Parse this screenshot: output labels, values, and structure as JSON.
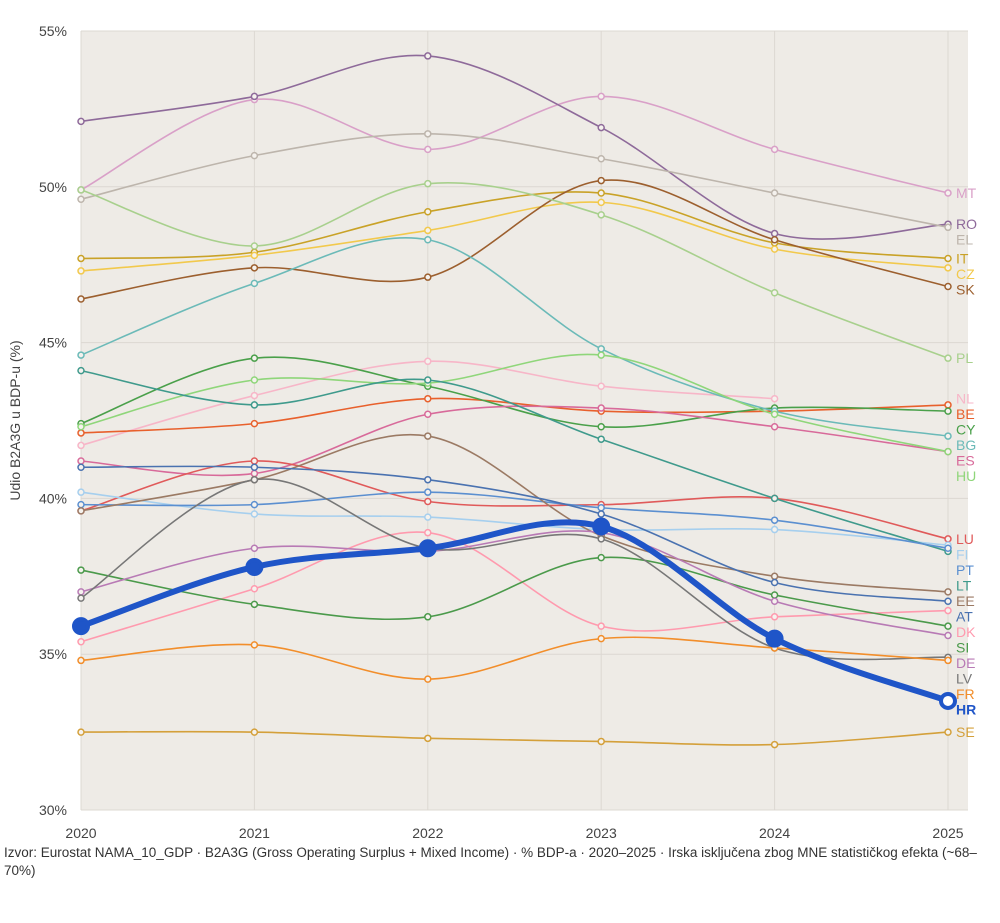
{
  "chart_data": {
    "type": "line",
    "title": "",
    "xlabel": "",
    "ylabel": "Udio B2A3G u BDP-u (%)",
    "x": [
      2020,
      2021,
      2022,
      2023,
      2024,
      2025
    ],
    "x_tick_labels": [
      "2020",
      "2021",
      "2022",
      "2023",
      "2024",
      "2025"
    ],
    "ylim": [
      30,
      55
    ],
    "y_ticks": [
      30,
      35,
      40,
      45,
      50,
      55
    ],
    "y_tick_labels": [
      "30%",
      "35%",
      "40%",
      "45%",
      "50%",
      "55%"
    ],
    "grid": true,
    "legend": "direct labels at right end of lines",
    "highlight": "HR",
    "series": [
      {
        "name": "MT",
        "color": "#d9a0c8",
        "values": [
          49.9,
          52.8,
          51.2,
          52.9,
          51.2,
          49.8
        ]
      },
      {
        "name": "RO",
        "color": "#8e6a9a",
        "values": [
          52.1,
          52.9,
          54.2,
          51.9,
          48.5,
          48.8
        ]
      },
      {
        "name": "EL",
        "color": "#bdb5ac",
        "values": [
          49.6,
          51.0,
          51.7,
          50.9,
          49.8,
          48.7
        ]
      },
      {
        "name": "IT",
        "color": "#c9a227",
        "values": [
          47.7,
          47.9,
          49.2,
          49.8,
          48.2,
          47.7
        ]
      },
      {
        "name": "CZ",
        "color": "#f2c94c",
        "values": [
          47.3,
          47.8,
          48.6,
          49.5,
          48.0,
          47.4
        ]
      },
      {
        "name": "SK",
        "color": "#9c5f2e",
        "values": [
          46.4,
          47.4,
          47.1,
          50.2,
          48.3,
          46.8
        ]
      },
      {
        "name": "PL",
        "color": "#a8d08d",
        "values": [
          49.9,
          48.1,
          50.1,
          49.1,
          46.6,
          44.5
        ]
      },
      {
        "name": "NL",
        "color": "#f7b6c8",
        "values": [
          41.7,
          43.3,
          44.4,
          43.6,
          43.2,
          null
        ]
      },
      {
        "name": "BE",
        "color": "#e8602c",
        "values": [
          42.1,
          42.4,
          43.2,
          42.8,
          42.8,
          43.0
        ]
      },
      {
        "name": "CY",
        "color": "#4aa04a",
        "values": [
          42.4,
          44.5,
          43.6,
          42.3,
          42.9,
          42.8
        ]
      },
      {
        "name": "BG",
        "color": "#6bbab8",
        "values": [
          44.6,
          46.9,
          48.3,
          44.8,
          42.8,
          42.0
        ]
      },
      {
        "name": "ES",
        "color": "#d86a9a",
        "values": [
          41.2,
          40.8,
          42.7,
          42.9,
          42.3,
          41.5
        ]
      },
      {
        "name": "HU",
        "color": "#8fd67a",
        "values": [
          42.3,
          43.8,
          43.7,
          44.6,
          42.7,
          41.5
        ]
      },
      {
        "name": "LU",
        "color": "#e05a5a",
        "values": [
          39.6,
          41.2,
          39.9,
          39.8,
          40.0,
          38.7
        ]
      },
      {
        "name": "FI",
        "color": "#a6cfee",
        "values": [
          40.2,
          39.5,
          39.4,
          39.0,
          39.0,
          38.5
        ]
      },
      {
        "name": "LT",
        "color": "#3f9a8c",
        "values": [
          44.1,
          43.0,
          43.8,
          41.9,
          40.0,
          38.3
        ]
      },
      {
        "name": "PT",
        "color": "#5b8fd0",
        "values": [
          39.8,
          39.8,
          40.2,
          39.7,
          39.3,
          38.4
        ]
      },
      {
        "name": "EE",
        "color": "#9b7a64",
        "values": [
          39.6,
          40.6,
          42.0,
          38.8,
          37.5,
          37.0
        ]
      },
      {
        "name": "AT",
        "color": "#4a72b0",
        "values": [
          41.0,
          41.0,
          40.6,
          39.5,
          37.3,
          36.7
        ]
      },
      {
        "name": "DK",
        "color": "#ff9aae",
        "values": [
          35.4,
          37.1,
          38.9,
          35.9,
          36.2,
          36.4
        ]
      },
      {
        "name": "SI",
        "color": "#4b9a4b",
        "values": [
          37.7,
          36.6,
          36.2,
          38.1,
          36.9,
          35.9
        ]
      },
      {
        "name": "DE",
        "color": "#b87ab5",
        "values": [
          37.0,
          38.4,
          38.3,
          38.9,
          36.7,
          35.6
        ]
      },
      {
        "name": "LV",
        "color": "#777777",
        "values": [
          36.8,
          40.6,
          38.4,
          38.7,
          35.2,
          34.9
        ]
      },
      {
        "name": "FR",
        "color": "#f28e2b",
        "values": [
          34.8,
          35.3,
          34.2,
          35.5,
          35.2,
          34.8
        ]
      },
      {
        "name": "HR",
        "color": "#1f55c8",
        "values": [
          35.9,
          37.8,
          38.4,
          39.1,
          35.5,
          33.5
        ]
      },
      {
        "name": "SE",
        "color": "#d4a03a",
        "values": [
          32.5,
          32.5,
          32.3,
          32.2,
          32.1,
          32.5
        ]
      }
    ]
  },
  "note": "Izvor: Eurostat NAMA_10_GDP · B2A3G (Gross Operating Surplus + Mixed Income) · % BDP-a · 2020–2025 · Irska isključena zbog MNE statističkog efekta (~68–70%)"
}
